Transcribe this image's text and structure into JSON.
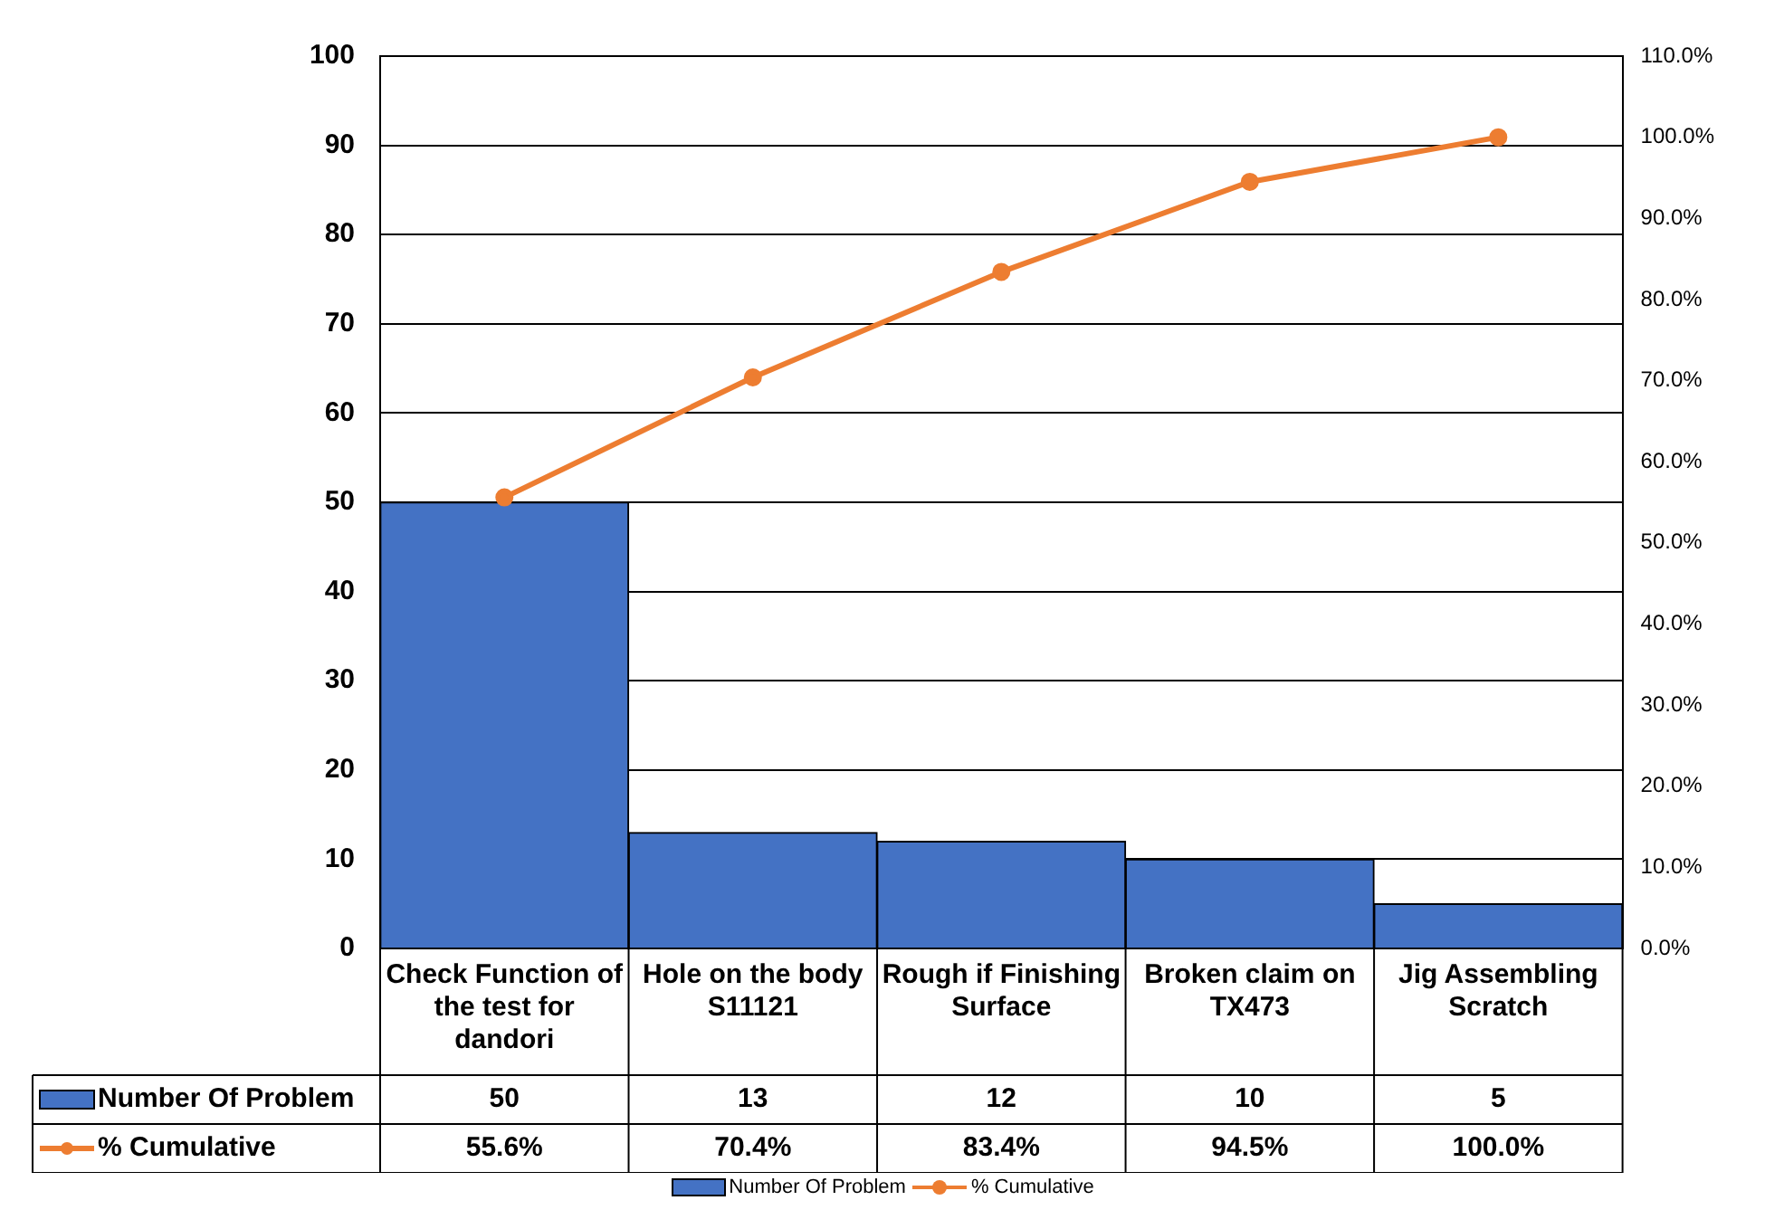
{
  "chart_data": {
    "type": "bar",
    "categories": [
      "Check Function of the test for dandori",
      "Hole on the body S11121",
      "Rough if Finishing Surface",
      "Broken claim on TX473",
      "Jig Assembling Scratch"
    ],
    "series": [
      {
        "name": "Number Of Problem",
        "color": "#4472c4",
        "values": [
          50,
          13,
          12,
          10,
          5
        ],
        "value_labels": [
          "50",
          "13",
          "12",
          "10",
          "5"
        ]
      },
      {
        "name": "% Cumulative",
        "type": "line",
        "axis": "y2",
        "color": "#ed7d31",
        "values": [
          55.6,
          70.4,
          83.4,
          94.5,
          100.0
        ],
        "value_labels": [
          "55.6%",
          "70.4%",
          "83.4%",
          "94.5%",
          "100.0%"
        ]
      }
    ],
    "ylim": [
      0,
      100
    ],
    "yticks": [
      0,
      10,
      20,
      30,
      40,
      50,
      60,
      70,
      80,
      90,
      100
    ],
    "y2lim": [
      0,
      110
    ],
    "y2ticks": [
      {
        "value": 0,
        "label": "0.0%"
      },
      {
        "value": 10,
        "label": "10.0%"
      },
      {
        "value": 20,
        "label": "20.0%"
      },
      {
        "value": 30,
        "label": "30.0%"
      },
      {
        "value": 40,
        "label": "40.0%"
      },
      {
        "value": 50,
        "label": "50.0%"
      },
      {
        "value": 60,
        "label": "60.0%"
      },
      {
        "value": 70,
        "label": "70.0%"
      },
      {
        "value": 80,
        "label": "80.0%"
      },
      {
        "value": 90,
        "label": "90.0%"
      },
      {
        "value": 100,
        "label": "100.0%"
      },
      {
        "value": 110,
        "label": "110.0%"
      }
    ],
    "grid": "y",
    "legend": "bottom",
    "marker": "circle",
    "line_style": "solid"
  }
}
